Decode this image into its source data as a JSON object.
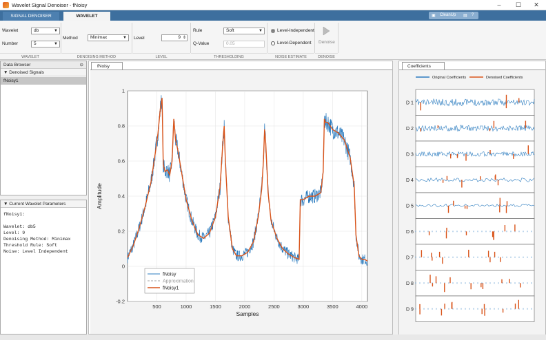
{
  "window": {
    "title": "Wavelet Signal Denoiser - fNoisy",
    "minimize": "–",
    "maximize": "☐",
    "close": "✕"
  },
  "tabs": {
    "signal_denoiser": "SIGNAL DENOISER",
    "wavelet": "WAVELET"
  },
  "toolstrip": {
    "cleanup": "CleanUp"
  },
  "ribbon": {
    "wavelet_label": "Wavelet",
    "wavelet_value": "db",
    "number_label": "Number",
    "number_value": "5",
    "method_label": "Method",
    "method_value": "Minimax",
    "level_label": "Level",
    "level_value": "9",
    "rule_label": "Rule",
    "rule_value": "Soft",
    "qvalue_label": "Q-Value",
    "qvalue_value": "0.05",
    "noise_level_independent": "Level-Independent",
    "noise_level_dependent": "Level-Dependent",
    "denoise_label": "Denoise",
    "sections": {
      "wavelet": "WAVELET",
      "denoising_method": "DENOISING METHOD",
      "level": "LEVEL",
      "thresholding": "THRESHOLDING",
      "noise_estimate": "NOISE ESTIMATE",
      "denoise": "DENOISE"
    }
  },
  "data_browser": {
    "title": "Data Browser",
    "section": "Denoised Signals",
    "items": [
      "fNoisy1"
    ]
  },
  "params_panel": {
    "title": "Current Wavelet Parameters",
    "text": "fNoisy1:\n\nWavelet: db5\nLevel: 9\nDenoising Method: Minimax\nThreshold Rule: Soft\nNoise: Level Independent"
  },
  "signal_tab": "fNoisy",
  "coefficients_tab": "Coefficients",
  "chart_data": [
    {
      "type": "line",
      "xlabel": "Samples",
      "ylabel": "Amplitude",
      "xlim": [
        0,
        4096
      ],
      "ylim": [
        -0.2,
        1
      ],
      "xticks": [
        500,
        1000,
        1500,
        2000,
        2500,
        3000,
        3500,
        4000
      ],
      "yticks": [
        -0.2,
        0,
        0.2,
        0.4,
        0.6,
        0.8,
        1
      ],
      "grid": true,
      "legend_position": "bottom-left",
      "series": [
        {
          "name": "fNoisy",
          "color": "#2a7bbf",
          "style": "noisy"
        },
        {
          "name": "Approximation",
          "color": "#a0a0a0",
          "style": "dashed"
        },
        {
          "name": "fNoisy1",
          "color": "#d9541a",
          "style": "solid"
        }
      ],
      "x": [
        0,
        100,
        200,
        300,
        400,
        480,
        520,
        560,
        590,
        610,
        640,
        680,
        720,
        760,
        790,
        820,
        860,
        920,
        1000,
        1100,
        1200,
        1300,
        1400,
        1500,
        1580,
        1630,
        1650,
        1670,
        1720,
        1790,
        1860,
        1950,
        2050,
        2150,
        2230,
        2290,
        2320,
        2340,
        2360,
        2400,
        2450,
        2550,
        2650,
        2750,
        2850,
        2930,
        2950,
        3000,
        3100,
        3200,
        3300,
        3340,
        3360,
        3380,
        3420,
        3500,
        3600,
        3700,
        3800,
        3870,
        3900,
        3950,
        4000,
        4050,
        4096
      ],
      "y": [
        0.05,
        0.12,
        0.22,
        0.34,
        0.48,
        0.66,
        0.76,
        0.9,
        0.96,
        0.58,
        0.54,
        0.55,
        0.52,
        0.6,
        0.84,
        0.72,
        0.66,
        0.54,
        0.38,
        0.26,
        0.18,
        0.16,
        0.19,
        0.28,
        0.45,
        0.72,
        0.8,
        0.6,
        0.28,
        0.1,
        0.06,
        0.06,
        0.08,
        0.14,
        0.28,
        0.44,
        0.6,
        0.78,
        0.7,
        0.42,
        0.26,
        0.16,
        0.1,
        0.07,
        0.05,
        0.04,
        0.38,
        0.38,
        0.4,
        0.4,
        0.42,
        0.54,
        0.84,
        0.82,
        0.82,
        0.78,
        0.76,
        0.72,
        0.62,
        0.46,
        0.18,
        0.06,
        0.04,
        0.04,
        0.03
      ]
    },
    {
      "type": "line",
      "legend": [
        "Original Coefficients",
        "Denoised Coefficients"
      ],
      "legend_colors": [
        "#2a7bbf",
        "#d9541a"
      ],
      "rows": [
        "D 1",
        "D 2",
        "D 3",
        "D 4",
        "D 5",
        "D 6",
        "D 7",
        "D 8",
        "D 9"
      ]
    }
  ]
}
